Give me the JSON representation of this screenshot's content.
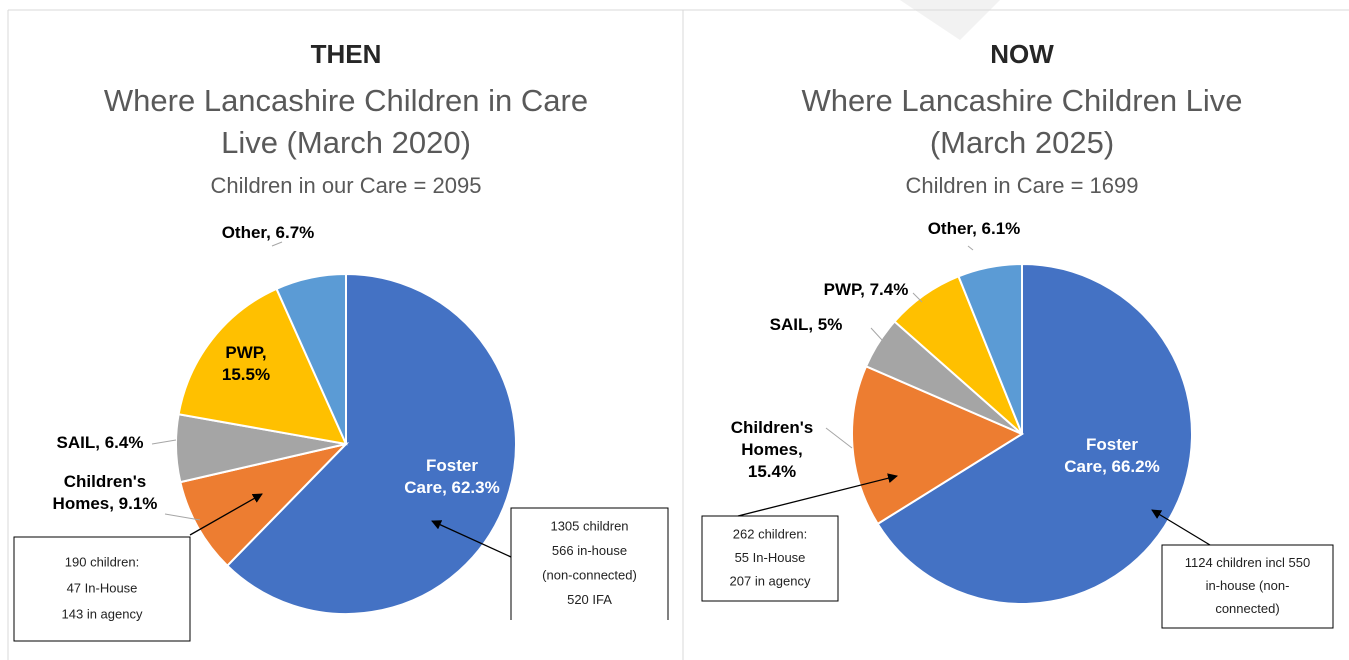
{
  "chart_data": [
    {
      "type": "pie",
      "title": "THEN",
      "subtitle": "Where Lancashire Children in Care Live (March 2020)",
      "caption": "Children in our Care = 2095",
      "values": [
        62.3,
        9.1,
        6.4,
        15.5,
        6.7
      ],
      "value_labels": [
        "Foster Care, 62.3%",
        "Children's Homes, 9.1%",
        "SAIL, 6.4%",
        "PWP, 15.5%",
        "Other, 6.7%"
      ],
      "colors": [
        "#4472c4",
        "#ed7d31",
        "#a5a5a5",
        "#ffc000",
        "#5b9bd5"
      ],
      "annotations": [
        {
          "lines": [
            "190 children:",
            "47 In-House",
            "143 in agency"
          ]
        },
        {
          "lines": [
            "1305 children",
            "566 in-house",
            "(non-connected)",
            "520 IFA"
          ]
        }
      ]
    },
    {
      "type": "pie",
      "title": "NOW",
      "subtitle": "Where Lancashire Children Live (March 2025)",
      "caption": "Children in Care = 1699",
      "values": [
        66.2,
        15.4,
        5,
        7.4,
        6.1
      ],
      "value_labels": [
        "Foster Care, 66.2%",
        "Children's Homes, 15.4%",
        "SAIL, 5%",
        "PWP, 7.4%",
        "Other, 6.1%"
      ],
      "colors": [
        "#4472c4",
        "#ed7d31",
        "#a5a5a5",
        "#ffc000",
        "#5b9bd5"
      ],
      "annotations": [
        {
          "lines": [
            "262 children:",
            "55 In-House",
            "207 in agency"
          ]
        },
        {
          "lines": [
            "1124 children incl 550",
            "in-house (non-",
            "connected)"
          ]
        }
      ]
    }
  ]
}
